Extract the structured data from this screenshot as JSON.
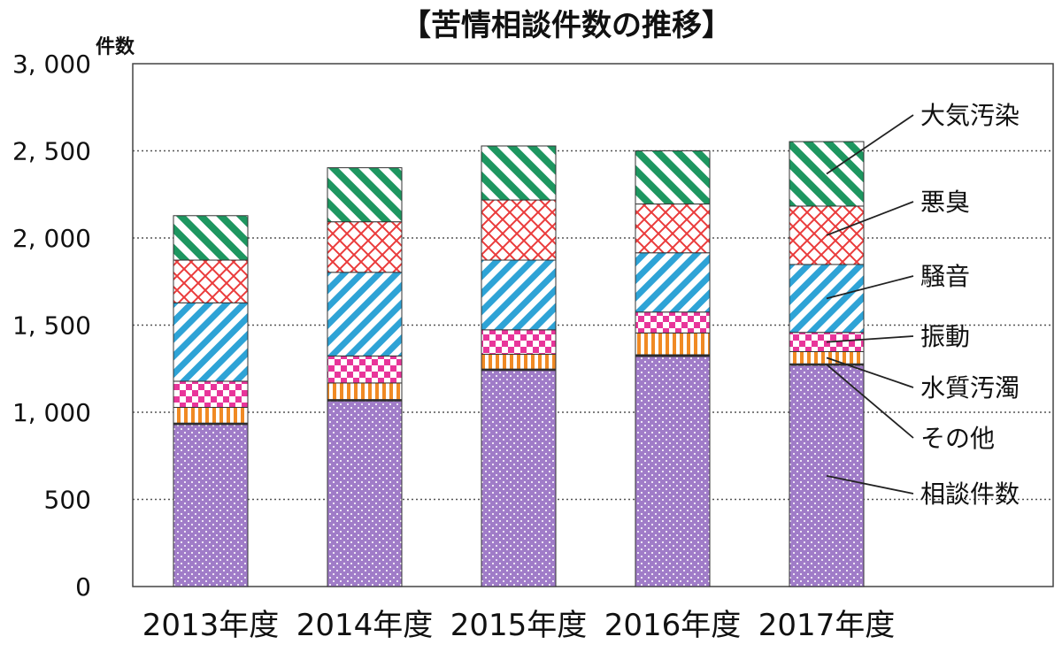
{
  "chart_data": {
    "type": "bar",
    "stacked": true,
    "title": "【苦情相談件数の推移】",
    "ylabel": "件数",
    "ylim": [
      0,
      3000
    ],
    "yticks": [
      "0",
      "500",
      "1, 000",
      "1, 500",
      "2, 000",
      "2, 500",
      "3, 000"
    ],
    "ytick_values": [
      0,
      500,
      1000,
      1500,
      2000,
      2500,
      3000
    ],
    "grid": "horizontal dotted",
    "legend": "right (callout labels)",
    "categories": [
      "2013年度",
      "2014年度",
      "2015年度",
      "2016年度",
      "2017年度"
    ],
    "series": [
      {
        "name": "相談件数",
        "values": [
          930,
          1065,
          1240,
          1320,
          1270
        ],
        "color": "#a07cc8"
      },
      {
        "name": "その他",
        "values": [
          8,
          8,
          8,
          10,
          8
        ],
        "color": "#222222"
      },
      {
        "name": "水質汚濁",
        "values": [
          90,
          95,
          85,
          125,
          70
        ],
        "color": "#f08a24"
      },
      {
        "name": "振動",
        "values": [
          150,
          155,
          140,
          120,
          110
        ],
        "color": "#e8359a"
      },
      {
        "name": "騒音",
        "values": [
          450,
          480,
          400,
          340,
          390
        ],
        "color": "#2ea3d6"
      },
      {
        "name": "悪臭",
        "values": [
          245,
          290,
          345,
          280,
          335
        ],
        "color": "#ea3b3b"
      },
      {
        "name": "大気汚染",
        "values": [
          255,
          310,
          310,
          305,
          370
        ],
        "color": "#1e9660"
      }
    ],
    "legend_labels": [
      "大気汚染",
      "悪臭",
      "騒音",
      "振動",
      "水質汚濁",
      "その他",
      "相談件数"
    ]
  }
}
